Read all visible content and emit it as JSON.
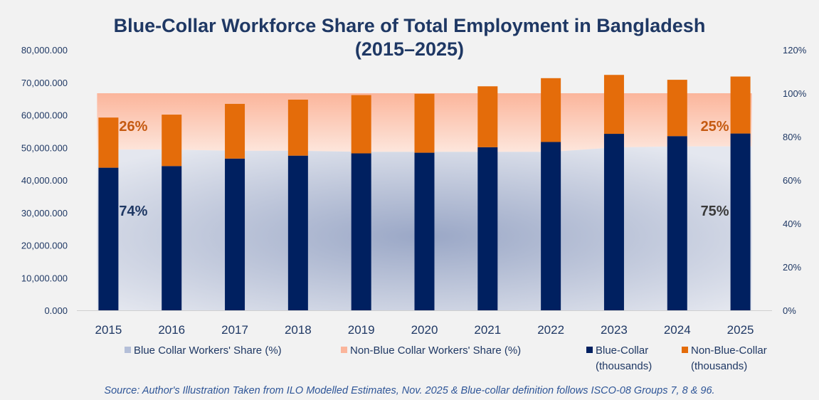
{
  "chart_data": {
    "type": "bar",
    "title_line1": "Blue-Collar Workforce Share of Total Employment in Bangladesh",
    "title_line2": "(2015–2025)",
    "categories": [
      "2015",
      "2016",
      "2017",
      "2018",
      "2019",
      "2020",
      "2021",
      "2022",
      "2023",
      "2024",
      "2025"
    ],
    "stacked": true,
    "series": [
      {
        "name": "Blue-Collar (thousands)",
        "axis": "left",
        "color": "#002060",
        "values": [
          43800000,
          44300000,
          46600000,
          47500000,
          48200000,
          48400000,
          50100000,
          51700000,
          54200000,
          53500000,
          54300000
        ]
      },
      {
        "name": "Non-Blue-Collar (thousands)",
        "axis": "left",
        "color": "#e46c0a",
        "values": [
          15400000,
          15800000,
          16800000,
          17200000,
          17900000,
          18100000,
          18700000,
          19600000,
          18100000,
          17300000,
          17500000
        ]
      },
      {
        "name": "Blue Collar Workers' Share (%)",
        "axis": "right",
        "type": "area",
        "color": "#b4bfd8",
        "values": [
          74,
          74,
          73.5,
          73.5,
          73,
          73,
          73,
          73,
          75,
          75.5,
          75.5
        ]
      },
      {
        "name": "Non-Blue Collar Workers' Share (%)",
        "axis": "right",
        "type": "area",
        "color": "#fbb59b",
        "values": [
          26,
          26,
          26.5,
          26.5,
          27,
          27,
          27,
          27,
          25,
          24.5,
          24.5
        ]
      }
    ],
    "ylim_left": [
      0,
      80000000
    ],
    "yticks_left": [
      "0.000",
      "10,000.000",
      "20,000.000",
      "30,000.000",
      "40,000.000",
      "50,000.000",
      "60,000.000",
      "70,000.000",
      "80,000.000"
    ],
    "ylim_right": [
      0,
      120
    ],
    "yticks_right": [
      "0%",
      "20%",
      "40%",
      "60%",
      "80%",
      "100%",
      "120%"
    ],
    "annotations": [
      {
        "text": "26%",
        "category": "2015",
        "color": "#c55a11",
        "series": "Non-Blue Collar Workers' Share (%)"
      },
      {
        "text": "74%",
        "category": "2015",
        "color": "#1f3864",
        "series": "Blue Collar Workers' Share (%)"
      },
      {
        "text": "25%",
        "category": "2025",
        "color": "#c55a11",
        "series": "Non-Blue Collar Workers' Share (%)"
      },
      {
        "text": "75%",
        "category": "2025",
        "color": "#3a3a3a",
        "series": "Blue Collar Workers' Share (%)"
      }
    ],
    "legend": [
      {
        "label": "Blue Collar Workers' Share (%)",
        "color": "#b4bfd8"
      },
      {
        "label": "Non-Blue Collar Workers' Share (%)",
        "color": "#fbb59b"
      },
      {
        "label": "Blue-Collar",
        "label2": "(thousands)",
        "color": "#002060"
      },
      {
        "label": "Non-Blue-Collar",
        "label2": "(thousands)",
        "color": "#e46c0a"
      }
    ],
    "legend_position": "bottom",
    "grid": false
  },
  "source": "Source: Author's Illustration Taken from ILO Modelled Estimates, Nov. 2025 & Blue-collar definition follows ISCO-08 Groups 7, 8 & 96."
}
